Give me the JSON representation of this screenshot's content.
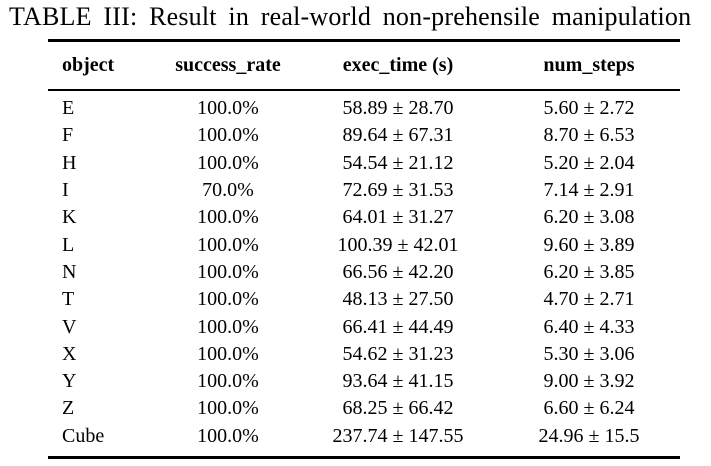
{
  "caption": "TABLE III: Result in real-world non-prehensile manipulation",
  "table": {
    "columns": [
      "object",
      "success_rate",
      "exec_time (s)",
      "num_steps"
    ],
    "rows": [
      {
        "object": "E",
        "success_rate": "100.0%",
        "exec_time": "58.89 ± 28.70",
        "num_steps": "5.60 ± 2.72"
      },
      {
        "object": "F",
        "success_rate": "100.0%",
        "exec_time": "89.64 ± 67.31",
        "num_steps": "8.70 ± 6.53"
      },
      {
        "object": "H",
        "success_rate": "100.0%",
        "exec_time": "54.54 ± 21.12",
        "num_steps": "5.20 ± 2.04"
      },
      {
        "object": "I",
        "success_rate": "70.0%",
        "exec_time": "72.69 ± 31.53",
        "num_steps": "7.14 ± 2.91"
      },
      {
        "object": "K",
        "success_rate": "100.0%",
        "exec_time": "64.01 ± 31.27",
        "num_steps": "6.20 ± 3.08"
      },
      {
        "object": "L",
        "success_rate": "100.0%",
        "exec_time": "100.39 ± 42.01",
        "num_steps": "9.60 ± 3.89"
      },
      {
        "object": "N",
        "success_rate": "100.0%",
        "exec_time": "66.56 ± 42.20",
        "num_steps": "6.20 ± 3.85"
      },
      {
        "object": "T",
        "success_rate": "100.0%",
        "exec_time": "48.13 ± 27.50",
        "num_steps": "4.70 ± 2.71"
      },
      {
        "object": "V",
        "success_rate": "100.0%",
        "exec_time": "66.41 ± 44.49",
        "num_steps": "6.40 ± 4.33"
      },
      {
        "object": "X",
        "success_rate": "100.0%",
        "exec_time": "54.62 ± 31.23",
        "num_steps": "5.30 ± 3.06"
      },
      {
        "object": "Y",
        "success_rate": "100.0%",
        "exec_time": "93.64 ± 41.15",
        "num_steps": "9.00 ± 3.92"
      },
      {
        "object": "Z",
        "success_rate": "100.0%",
        "exec_time": "68.25 ± 66.42",
        "num_steps": "6.60 ± 6.24"
      },
      {
        "object": "Cube",
        "success_rate": "100.0%",
        "exec_time": "237.74 ± 147.55",
        "num_steps": "24.96 ± 15.5"
      }
    ]
  },
  "colors": {
    "text": "#000000",
    "background": "#ffffff",
    "rule": "#000000"
  }
}
